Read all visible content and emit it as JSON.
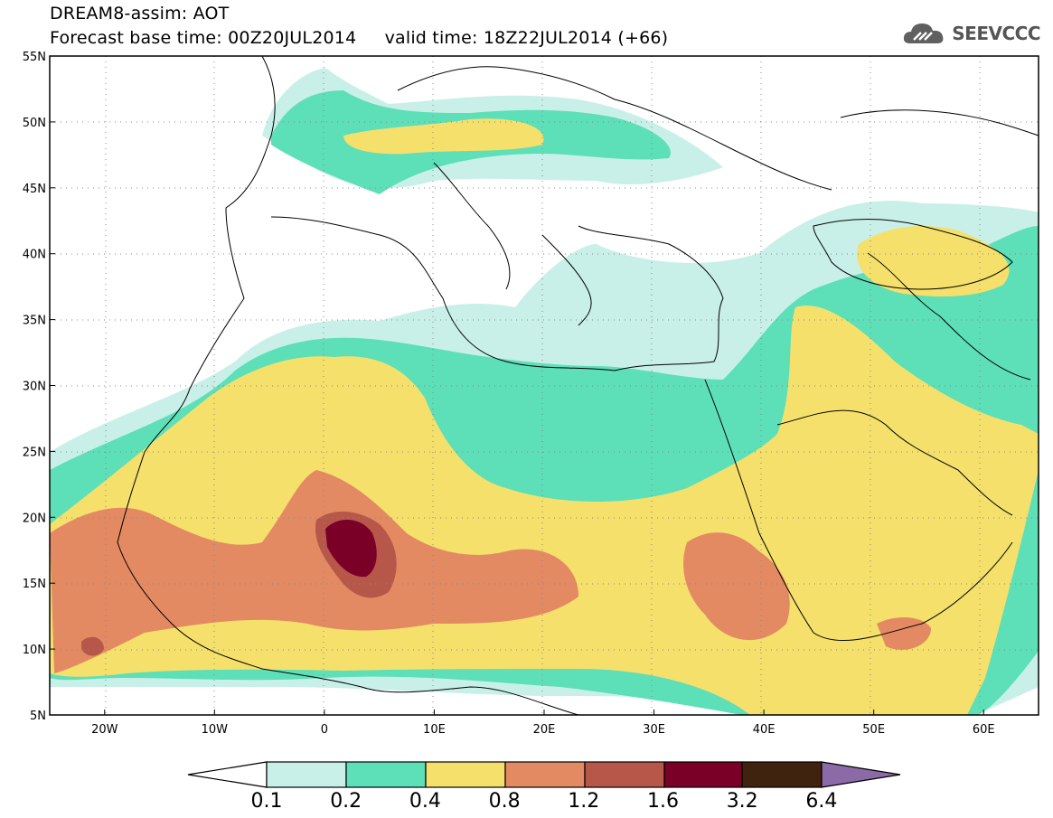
{
  "header": {
    "title": "DREAM8-assim: AOT",
    "base_time_label": "Forecast base time: 00Z20JUL2014",
    "valid_time_label": "valid time: 18Z22JUL2014 (+66)"
  },
  "logo": {
    "text": "SEEVCCC",
    "icon": "cloud-icon"
  },
  "map": {
    "lon_range": [
      -25,
      65
    ],
    "lat_range": [
      5,
      55
    ],
    "lat_ticks": [
      "55N",
      "50N",
      "45N",
      "40N",
      "35N",
      "30N",
      "25N",
      "20N",
      "15N",
      "10N",
      "5N"
    ],
    "lon_ticks": [
      "20W",
      "10W",
      "0",
      "10E",
      "20E",
      "30E",
      "40E",
      "50E",
      "60E"
    ],
    "grid": "dotted"
  },
  "colorbar": {
    "levels": [
      "0.1",
      "0.2",
      "0.4",
      "0.8",
      "1.2",
      "1.6",
      "3.2",
      "6.4"
    ],
    "colors": {
      "under": "#ffffff",
      "c1": "#c8f0e8",
      "c2": "#5ddfb8",
      "c3": "#f5e06c",
      "c4": "#e38a63",
      "c5": "#b7574a",
      "c6": "#7a0028",
      "c7": "#40230f",
      "over": "#8c6aa8"
    }
  }
}
